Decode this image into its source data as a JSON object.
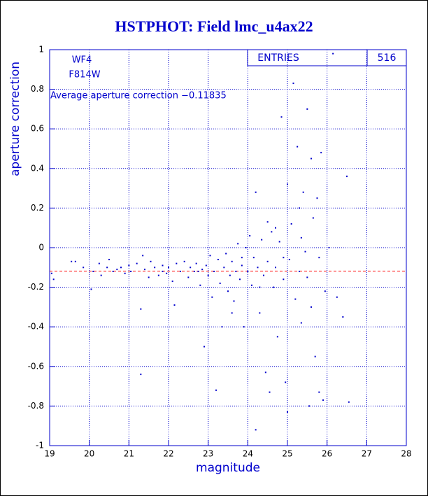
{
  "chart_data": {
    "type": "scatter",
    "title": "HSTPHOT: Field lmc_u4ax22",
    "xlabel": "magnitude",
    "ylabel": "aperture correction",
    "annotations": [
      "WF4",
      "F814W",
      "Average aperture correction −0.11835"
    ],
    "stats_label": "ENTRIES",
    "stats_value": "516",
    "hline": -0.11835,
    "hline_color": "#ff0000",
    "color": "#0000cc",
    "grid": true,
    "xlim": [
      19,
      28
    ],
    "xticks": [
      19,
      20,
      21,
      22,
      23,
      24,
      25,
      26,
      27,
      28
    ],
    "ylim": [
      -1,
      1
    ],
    "yticks": [
      -1,
      -0.8,
      -0.6,
      -0.4,
      -0.2,
      0,
      0.2,
      0.4,
      0.6,
      0.8,
      1
    ],
    "x": [
      19.05,
      19.1,
      19.55,
      19.65,
      19.85,
      20.05,
      20.1,
      20.25,
      20.3,
      20.45,
      20.5,
      20.6,
      20.7,
      20.8,
      20.9,
      21.0,
      21.05,
      21.2,
      21.3,
      21.3,
      21.35,
      21.4,
      21.5,
      21.55,
      21.65,
      21.75,
      21.85,
      21.95,
      22.0,
      22.1,
      22.15,
      22.2,
      22.3,
      22.4,
      22.5,
      22.55,
      22.65,
      22.7,
      22.8,
      22.85,
      22.9,
      22.95,
      23.0,
      23.05,
      23.1,
      23.15,
      23.2,
      23.25,
      23.3,
      23.35,
      23.4,
      23.45,
      23.5,
      23.55,
      23.6,
      23.65,
      23.7,
      23.75,
      23.8,
      23.85,
      23.9,
      23.95,
      24.0,
      24.05,
      24.1,
      24.15,
      24.2,
      24.2,
      24.25,
      24.3,
      24.35,
      24.4,
      24.45,
      24.5,
      24.55,
      24.6,
      24.65,
      24.7,
      24.75,
      24.8,
      24.85,
      24.9,
      24.95,
      25.0,
      25.0,
      25.05,
      25.1,
      25.15,
      25.2,
      25.25,
      25.3,
      25.35,
      25.4,
      25.45,
      25.5,
      25.55,
      25.6,
      25.65,
      25.7,
      25.75,
      25.8,
      25.85,
      25.9,
      25.95,
      26.15,
      26.25,
      26.4,
      26.5,
      26.55,
      26.05,
      25.3,
      24.5,
      23.85,
      22.75,
      21.85,
      25.8,
      25.5,
      24.9,
      24.3,
      23.6,
      25.35,
      25.6,
      24.7
    ],
    "values": [
      -0.13,
      -0.16,
      -0.07,
      -0.07,
      -0.1,
      -0.21,
      -0.12,
      -0.08,
      -0.14,
      -0.1,
      -0.06,
      -0.12,
      -0.11,
      -0.1,
      -0.13,
      -0.09,
      -0.12,
      -0.08,
      -0.31,
      -0.64,
      -0.04,
      -0.11,
      -0.15,
      -0.07,
      -0.1,
      -0.14,
      -0.09,
      -0.13,
      -0.1,
      -0.17,
      -0.29,
      -0.08,
      -0.12,
      -0.07,
      -0.15,
      -0.1,
      -0.12,
      -0.08,
      -0.19,
      -0.11,
      -0.5,
      -0.09,
      -0.14,
      -0.04,
      -0.25,
      -0.12,
      -0.72,
      -0.06,
      -0.18,
      -0.4,
      -0.1,
      -0.03,
      -0.22,
      -0.14,
      -0.07,
      -0.27,
      -0.12,
      0.02,
      -0.16,
      -0.09,
      -0.4,
      0.0,
      -0.12,
      0.06,
      -0.19,
      -0.05,
      0.28,
      -0.92,
      -0.1,
      -0.33,
      0.04,
      -0.14,
      -0.63,
      -0.07,
      -0.73,
      0.08,
      -0.2,
      -0.1,
      -0.45,
      0.03,
      0.66,
      -0.16,
      -0.68,
      0.32,
      -0.83,
      -0.06,
      0.12,
      0.83,
      -0.26,
      0.51,
      -0.12,
      -0.38,
      0.28,
      -0.02,
      0.7,
      -0.8,
      -0.3,
      0.15,
      -0.55,
      0.25,
      -0.73,
      0.48,
      -0.77,
      -0.22,
      0.98,
      -0.25,
      -0.35,
      0.36,
      -0.78,
      0.0,
      0.2,
      0.13,
      -0.05,
      -0.12,
      -0.12,
      -0.05,
      -0.15,
      -0.05,
      -0.2,
      -0.33,
      0.05,
      0.45,
      0.1
    ]
  }
}
